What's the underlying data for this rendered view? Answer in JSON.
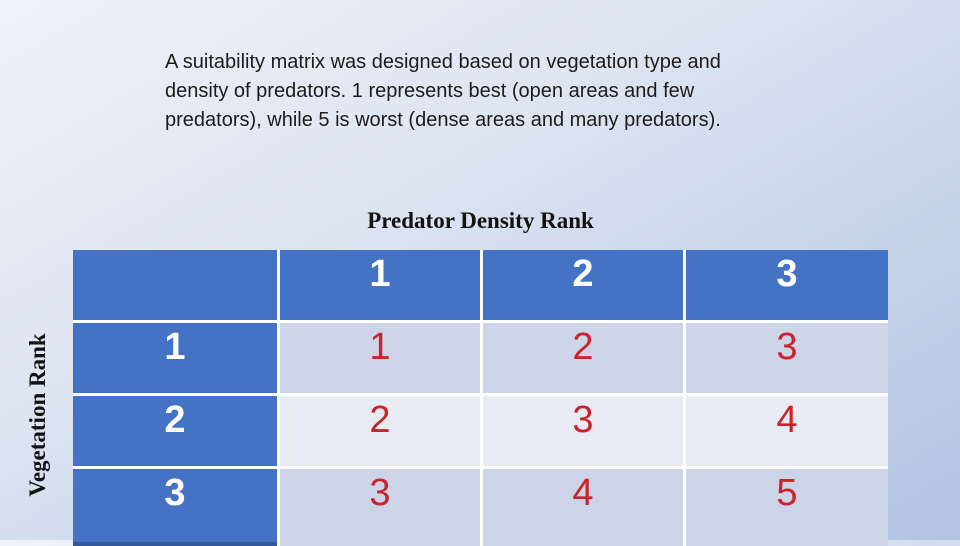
{
  "description": {
    "lines": [
      "A suitability matrix was designed based on vegetation type and",
      "density of predators. 1 represents best (open areas and few",
      "predators), while 5 is worst (dense areas and many predators)."
    ]
  },
  "table": {
    "column_axis_title": "Predator Density Rank",
    "row_axis_title": "Vegetation Rank",
    "corner": "",
    "col_headers": [
      "1",
      "2",
      "3"
    ],
    "rows": [
      {
        "header": "1",
        "values": [
          "1",
          "2",
          "3"
        ]
      },
      {
        "header": "2",
        "values": [
          "2",
          "3",
          "4"
        ]
      },
      {
        "header": "3",
        "values": [
          "3",
          "4",
          "5"
        ]
      }
    ]
  },
  "colors": {
    "header_blue": "#4472c4",
    "band_dark": "#cdd4e8",
    "band_light": "#e9ebf4",
    "value_red": "#c9232b",
    "gap_white": "#ffffff"
  }
}
